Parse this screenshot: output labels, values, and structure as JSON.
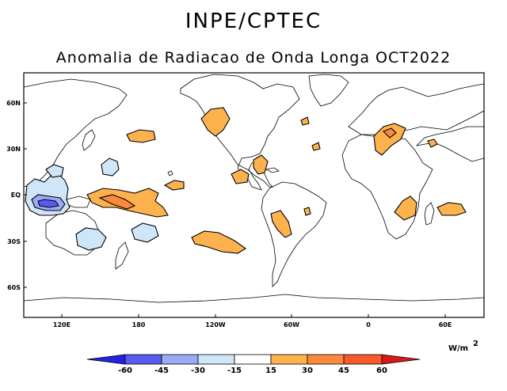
{
  "header": {
    "institution": "INPE/CPTEC",
    "title": "Anomalia de Radiacao de Onda Longa OCT2022"
  },
  "map": {
    "lat_ticks": [
      "60N",
      "30N",
      "EQ",
      "30S",
      "60S"
    ],
    "lon_ticks": [
      "120E",
      "180",
      "120W",
      "60W",
      "0",
      "60E"
    ],
    "units": "W/m",
    "units_exponent": "2",
    "anomaly_regions": [
      {
        "name": "maritime-continent",
        "sign": "negative"
      },
      {
        "name": "tropical-central-pacific",
        "sign": "positive"
      },
      {
        "name": "western-north-america",
        "sign": "positive"
      },
      {
        "name": "caribbean",
        "sign": "positive"
      },
      {
        "name": "southern-brazil",
        "sign": "positive"
      },
      {
        "name": "south-pacific-band",
        "sign": "positive"
      },
      {
        "name": "mediterranean-north-africa",
        "sign": "positive"
      },
      {
        "name": "southeast-africa",
        "sign": "positive"
      },
      {
        "name": "southwest-indian-ocean",
        "sign": "positive"
      },
      {
        "name": "southwest-pacific",
        "sign": "negative"
      }
    ]
  },
  "colorbar": {
    "labels": [
      "-60",
      "-45",
      "-30",
      "-15",
      "15",
      "30",
      "45",
      "60"
    ],
    "colors": {
      "lt_-60": "#2222e0",
      "-60_-45": "#5a5af0",
      "-45_-30": "#9aaaf5",
      "-30_-15": "#cfe6f8",
      "-15_15": "#ffffff",
      "15_30": "#fdb24d",
      "30_45": "#fb8a3e",
      "45_60": "#f65a2a",
      "gt_60": "#d81818"
    }
  }
}
